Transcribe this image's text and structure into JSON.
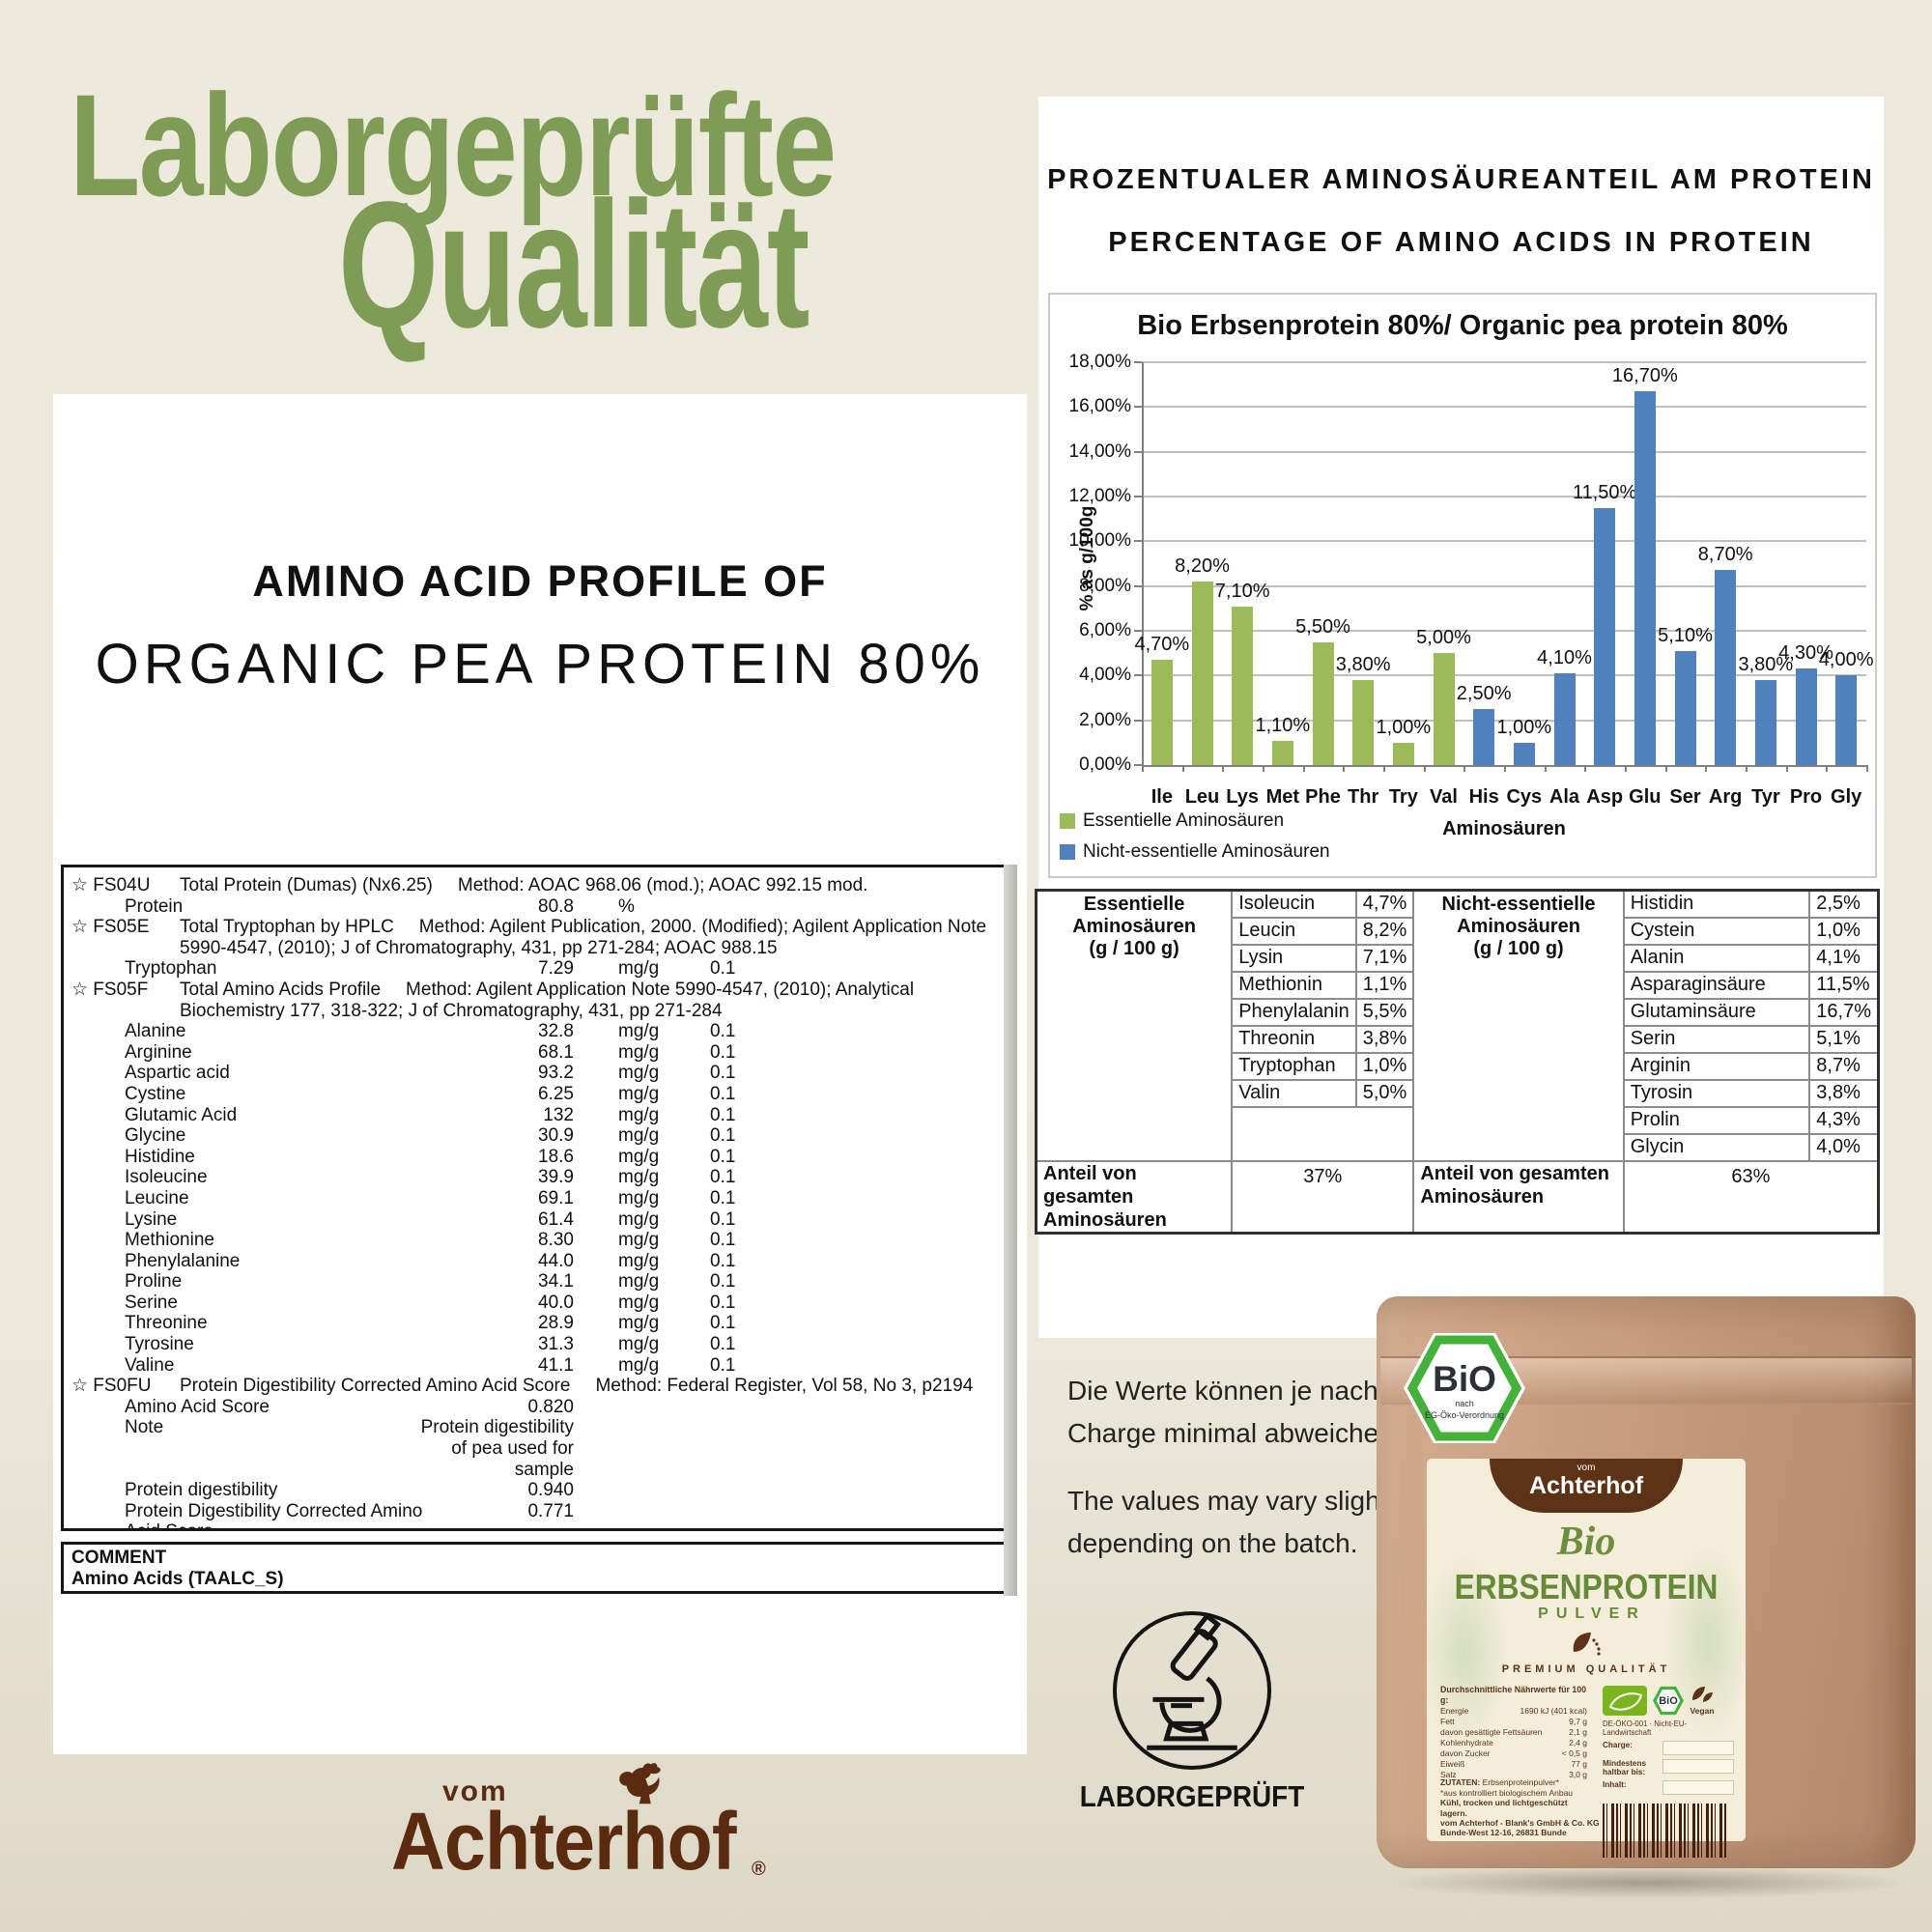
{
  "hero": {
    "line1": "Laborgeprüfte",
    "line2": "Qualität"
  },
  "colors": {
    "accent_green": "#7e9c55",
    "bar_green": "#9bbb59",
    "bar_blue": "#4f81bd",
    "background_beige": "#ebe7d9",
    "kraft_tan": "#c69b7d",
    "label_cream": "#f3edda",
    "label_green": "#678a39",
    "brand_brown": "#5b2b10",
    "bio_seal_green": "#44b13a"
  },
  "left_card": {
    "heading1": "AMINO ACID PROFILE OF",
    "heading2": "ORGANIC PEA PROTEIN 80%",
    "comment_label": "COMMENT",
    "comment_value": "Amino Acids (TAALC_S)",
    "report": {
      "rows": [
        {
          "type": "section",
          "code": "FS04U",
          "desc": "Total Protein (Dumas) (Nx6.25)",
          "method": "Method: AOAC 968.06 (mod.); AOAC 992.15 mod."
        },
        {
          "type": "value",
          "name": "Protein",
          "value": "80.8",
          "unit": "%",
          "prec": ""
        },
        {
          "type": "section",
          "code": "FS05E",
          "desc": "Total Tryptophan by HPLC",
          "method": "Method: Agilent Publication, 2000. (Modified); Agilent Application Note 5990-4547, (2010); J of Chromatography, 431, pp 271-284; AOAC 988.15"
        },
        {
          "type": "value",
          "name": "Tryptophan",
          "value": "7.29",
          "unit": "mg/g",
          "prec": "0.1"
        },
        {
          "type": "section",
          "code": "FS05F",
          "desc": "Total Amino Acids Profile",
          "method": "Method: Agilent Application Note 5990-4547, (2010); Analytical Biochemistry 177, 318-322; J of Chromatography, 431, pp 271-284"
        },
        {
          "type": "value",
          "name": "Alanine",
          "value": "32.8",
          "unit": "mg/g",
          "prec": "0.1"
        },
        {
          "type": "value",
          "name": "Arginine",
          "value": "68.1",
          "unit": "mg/g",
          "prec": "0.1"
        },
        {
          "type": "value",
          "name": "Aspartic acid",
          "value": "93.2",
          "unit": "mg/g",
          "prec": "0.1"
        },
        {
          "type": "value",
          "name": "Cystine",
          "value": "6.25",
          "unit": "mg/g",
          "prec": "0.1"
        },
        {
          "type": "value",
          "name": "Glutamic Acid",
          "value": "132",
          "unit": "mg/g",
          "prec": "0.1"
        },
        {
          "type": "value",
          "name": "Glycine",
          "value": "30.9",
          "unit": "mg/g",
          "prec": "0.1"
        },
        {
          "type": "value",
          "name": "Histidine",
          "value": "18.6",
          "unit": "mg/g",
          "prec": "0.1"
        },
        {
          "type": "value",
          "name": "Isoleucine",
          "value": "39.9",
          "unit": "mg/g",
          "prec": "0.1"
        },
        {
          "type": "value",
          "name": "Leucine",
          "value": "69.1",
          "unit": "mg/g",
          "prec": "0.1"
        },
        {
          "type": "value",
          "name": "Lysine",
          "value": "61.4",
          "unit": "mg/g",
          "prec": "0.1"
        },
        {
          "type": "value",
          "name": "Methionine",
          "value": "8.30",
          "unit": "mg/g",
          "prec": "0.1"
        },
        {
          "type": "value",
          "name": "Phenylalanine",
          "value": "44.0",
          "unit": "mg/g",
          "prec": "0.1"
        },
        {
          "type": "value",
          "name": "Proline",
          "value": "34.1",
          "unit": "mg/g",
          "prec": "0.1"
        },
        {
          "type": "value",
          "name": "Serine",
          "value": "40.0",
          "unit": "mg/g",
          "prec": "0.1"
        },
        {
          "type": "value",
          "name": "Threonine",
          "value": "28.9",
          "unit": "mg/g",
          "prec": "0.1"
        },
        {
          "type": "value",
          "name": "Tyrosine",
          "value": "31.3",
          "unit": "mg/g",
          "prec": "0.1"
        },
        {
          "type": "value",
          "name": "Valine",
          "value": "41.1",
          "unit": "mg/g",
          "prec": "0.1"
        },
        {
          "type": "section",
          "code": "FS0FU",
          "desc": "Protein Digestibility Corrected Amino Acid Score",
          "method": "Method: Federal Register, Vol 58, No 3, p2194"
        },
        {
          "type": "value",
          "name": "Amino Acid Score",
          "value": "0.820",
          "unit": "",
          "prec": ""
        },
        {
          "type": "note",
          "name": "Note",
          "lines": [
            "Protein digestibility",
            "of pea used for",
            "sample"
          ]
        },
        {
          "type": "value",
          "name": "Protein digestibility",
          "value": "0.940",
          "unit": "",
          "prec": ""
        },
        {
          "type": "value2",
          "name_lines": [
            "Protein Digestibility Corrected Amino",
            "Acid Score"
          ],
          "value": "0.771"
        }
      ]
    }
  },
  "right_card": {
    "header_de": "PROZENTUALER AMINOSÄUREANTEIL AM PROTEIN",
    "header_en": "PERCENTAGE OF AMINO ACIDS IN PROTEIN"
  },
  "chart_data": {
    "type": "bar",
    "title": "Bio Erbsenprotein  80%/ Organic pea protein 80%",
    "categories": [
      "Ile",
      "Leu",
      "Lys",
      "Met",
      "Phe",
      "Thr",
      "Try",
      "Val",
      "His",
      "Cys",
      "Ala",
      "Asp",
      "Glu",
      "Ser",
      "Arg",
      "Tyr",
      "Pro",
      "Gly"
    ],
    "values": [
      4.7,
      8.2,
      7.1,
      1.1,
      5.5,
      3.8,
      1.0,
      5.0,
      2.5,
      1.0,
      4.1,
      11.5,
      16.7,
      5.1,
      8.7,
      3.8,
      4.3,
      4.0
    ],
    "value_labels": [
      "4,70%",
      "8,20%",
      "7,10%",
      "1,10%",
      "5,50%",
      "3,80%",
      "1,00%",
      "5,00%",
      "2,50%",
      "1,00%",
      "4,10%",
      "11,50%",
      "16,70%",
      "5,10%",
      "8,70%",
      "3,80%",
      "4,30%",
      "4,00%"
    ],
    "bar_series": [
      "essential",
      "essential",
      "essential",
      "essential",
      "essential",
      "essential",
      "essential",
      "essential",
      "nonessential",
      "nonessential",
      "nonessential",
      "nonessential",
      "nonessential",
      "nonessential",
      "nonessential",
      "nonessential",
      "nonessential",
      "nonessential"
    ],
    "series": [
      {
        "name": "Essentielle Aminosäuren",
        "color": "#9bbb59"
      },
      {
        "name": "Nicht-essentielle Aminosäuren",
        "color": "#4f81bd"
      }
    ],
    "xlabel": "Aminosäuren",
    "ylabel": "% as g/100g",
    "ylim": [
      0,
      18
    ],
    "ytick_step": 2,
    "ytick_labels": [
      "0,00%",
      "2,00%",
      "4,00%",
      "6,00%",
      "8,00%",
      "10,00%",
      "12,00%",
      "14,00%",
      "16,00%",
      "18,00%"
    ],
    "grid": true,
    "legend_position": "bottom-left"
  },
  "amino_table": {
    "left": {
      "header": "Essentielle Aminosäuren",
      "subheader": "(g / 100 g)",
      "rows": [
        [
          "Isoleucin",
          "4,7%"
        ],
        [
          "Leucin",
          "8,2%"
        ],
        [
          "Lysin",
          "7,1%"
        ],
        [
          "Methionin",
          "1,1%"
        ],
        [
          "Phenylalanin",
          "5,5%"
        ],
        [
          "Threonin",
          "3,8%"
        ],
        [
          "Tryptophan",
          "1,0%"
        ],
        [
          "Valin",
          "5,0%"
        ]
      ],
      "total_label": "Anteil von gesamten Aminosäuren",
      "total_value": "37%"
    },
    "right": {
      "header": "Nicht-essentielle Aminosäuren",
      "subheader": "(g / 100 g)",
      "rows": [
        [
          "Histidin",
          "2,5%"
        ],
        [
          "Cystein",
          "1,0%"
        ],
        [
          "Alanin",
          "4,1%"
        ],
        [
          "Asparaginsäure",
          "11,5%"
        ],
        [
          "Glutaminsäure",
          "16,7%"
        ],
        [
          "Serin",
          "5,1%"
        ],
        [
          "Arginin",
          "8,7%"
        ],
        [
          "Tyrosin",
          "3,8%"
        ],
        [
          "Prolin",
          "4,3%"
        ],
        [
          "Glycin",
          "4,0%"
        ]
      ],
      "total_label": "Anteil von gesamten Aminosäuren",
      "total_value": "63%"
    }
  },
  "disclaimer": {
    "de1": "Die Werte können je nach",
    "de2": "Charge minimal abweichen.",
    "en1": "The values may vary slightly",
    "en2": "depending on the batch."
  },
  "badge": {
    "label": "LABORGEPRÜFT"
  },
  "product": {
    "bio_seal": {
      "text": "BiO",
      "sub1": "nach",
      "sub2": "EG-Öko-Verordnung"
    },
    "brand_prefix": "vom",
    "brand": "Achterhof",
    "line_bio": "Bio",
    "line_name": "ERBSENPROTEIN",
    "line_sub": "PULVER",
    "premium": "PREMIUM QUALITÄT",
    "nutrition_title": "Durchschnittliche Nährwerte für 100 g:",
    "nutrition": [
      [
        "Energie",
        "1690 kJ (401 kcal)"
      ],
      [
        "Fett",
        "9,7 g"
      ],
      [
        "davon gesättigte Fettsäuren",
        "2,1 g"
      ],
      [
        "Kohlenhydrate",
        "2,4 g"
      ],
      [
        "davon Zucker",
        "< 0,5 g"
      ],
      [
        "Eiweiß",
        "77 g"
      ],
      [
        "Salz",
        "3,0 g"
      ]
    ],
    "zutaten": "ZUTATEN:",
    "zutaten_value": "Erbsenproteinpulver*",
    "zutaten2": "*aus kontrolliert biologischem Anbau",
    "storage": "Kühl, trocken und lichtgeschützt lagern.",
    "address1": "vom Achterhof - Blank's GmbH & Co. KG",
    "address2": "Bunde-West 12-16, 26831 Bunde",
    "eco_code": "DE-ÖKO-001 · Nicht-EU-Landwirtschaft",
    "vegan_label": "Vegan",
    "fields": [
      {
        "label": "Charge:"
      },
      {
        "label": "Mindestens haltbar bis:"
      },
      {
        "label": "Inhalt:"
      }
    ]
  },
  "footer_brand": {
    "vom": "vom",
    "name": "Achterhof",
    "reg": "®"
  }
}
